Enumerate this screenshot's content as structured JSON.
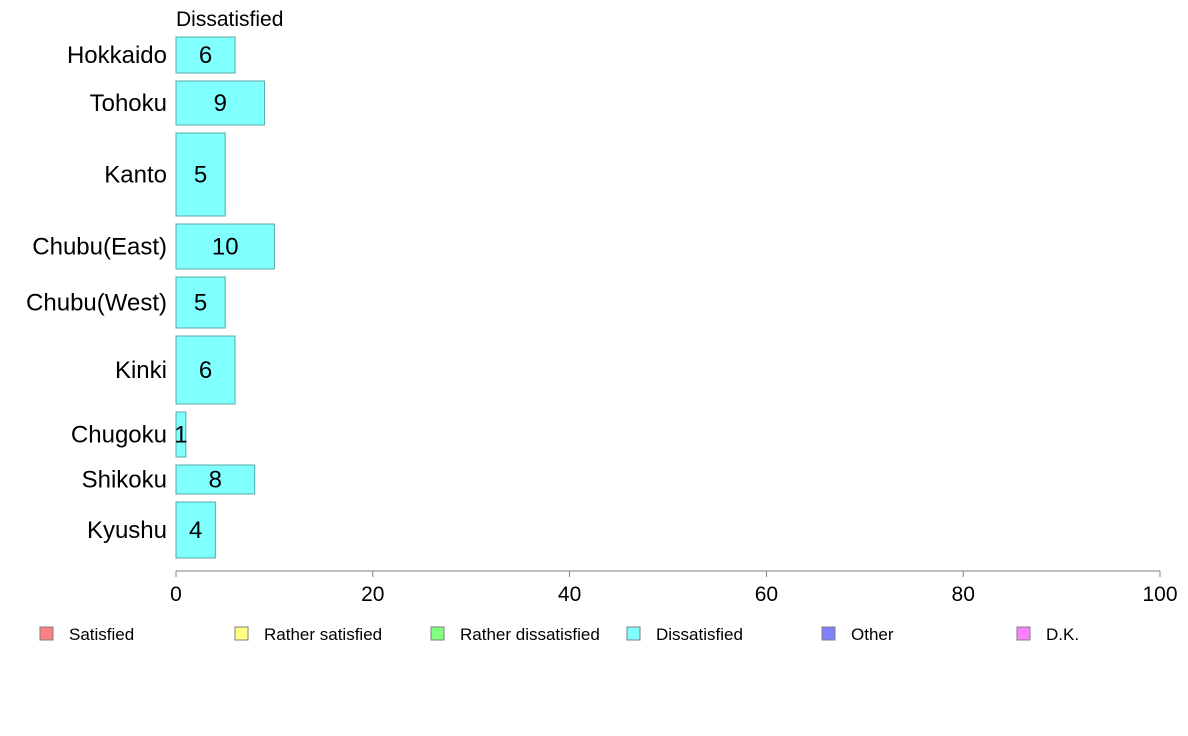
{
  "chart_data": {
    "type": "bar",
    "orientation": "horizontal",
    "variable_width": true,
    "panel_title": "Dissatisfied",
    "categories": [
      "Hokkaido",
      "Tohoku",
      "Kanto",
      "Chubu(East)",
      "Chubu(West)",
      "Kinki",
      "Chugoku",
      "Shikoku",
      "Kyushu"
    ],
    "series": [
      {
        "name": "Dissatisfied",
        "values": [
          6,
          9,
          5,
          10,
          5,
          6,
          1,
          8,
          4
        ],
        "color": "#80ffff"
      }
    ],
    "data_labels": [
      "6",
      "9",
      "5",
      "10",
      "5",
      "6",
      "1",
      "8",
      "4"
    ],
    "xlim": [
      0,
      100
    ],
    "x_ticks": [
      0,
      20,
      40,
      60,
      80,
      100
    ],
    "x_tick_labels": [
      "0",
      "20",
      "40",
      "60",
      "80",
      "100"
    ],
    "grid": false,
    "legend": {
      "placement": "bottom",
      "items": [
        {
          "label": "Satisfied",
          "color": "#ff8080"
        },
        {
          "label": "Rather satisfied",
          "color": "#ffff80"
        },
        {
          "label": "Rather dissatisfied",
          "color": "#80ff80"
        },
        {
          "label": "Dissatisfied",
          "color": "#80ffff"
        },
        {
          "label": "Other",
          "color": "#8080ff"
        },
        {
          "label": "D.K.",
          "color": "#ff80ff"
        }
      ]
    }
  }
}
